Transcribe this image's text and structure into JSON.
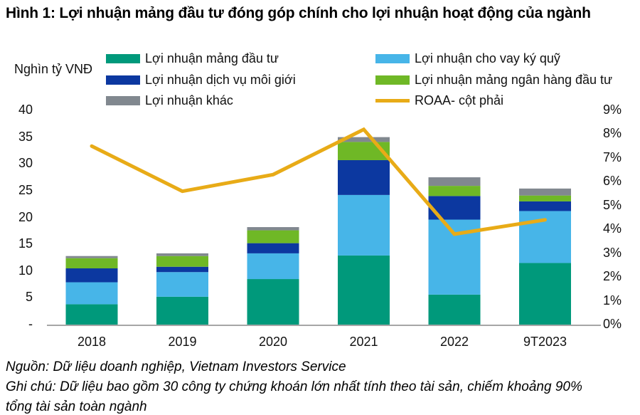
{
  "title": "Hình 1: Lợi nhuận mảng đầu tư đóng góp chính cho lợi nhuận hoạt động của ngành",
  "chart_data": {
    "type": "bar",
    "subtype": "stacked-bar-with-line-combo",
    "categories": [
      "2018",
      "2019",
      "2020",
      "2021",
      "2022",
      "9T2023"
    ],
    "stacked_series": [
      {
        "name": "Lợi nhuận mảng đầu tư",
        "color": "#00997B",
        "values": [
          3.8,
          5.2,
          8.5,
          12.9,
          5.6,
          11.5
        ]
      },
      {
        "name": "Lợi nhuận cho vay ký quỹ",
        "color": "#47B5E8",
        "values": [
          4.1,
          4.6,
          4.8,
          11.3,
          14.0,
          9.7
        ]
      },
      {
        "name": "Lợi nhuận dịch vụ môi giới",
        "color": "#0C38A0",
        "values": [
          2.6,
          1.0,
          1.9,
          6.5,
          4.4,
          1.8
        ]
      },
      {
        "name": "Lợi nhuận mảng ngân hàng đầu tư",
        "color": "#6FB826",
        "values": [
          1.9,
          2.0,
          2.4,
          3.4,
          1.9,
          1.1
        ]
      },
      {
        "name": "Lợi nhuận khác",
        "color": "#81888F",
        "values": [
          0.4,
          0.5,
          0.6,
          0.9,
          1.6,
          1.3
        ]
      }
    ],
    "line_series": {
      "name": "ROAA- cột phải",
      "color": "#E8AB17",
      "values_percent": [
        7.5,
        5.6,
        6.3,
        8.2,
        3.8,
        4.4
      ]
    },
    "left_axis": {
      "title": "Nghìn tỷ VNĐ",
      "min": 0,
      "max": 40,
      "ticks": [
        {
          "label": "40",
          "value": 40
        },
        {
          "label": "35",
          "value": 35
        },
        {
          "label": "30",
          "value": 30
        },
        {
          "label": "25",
          "value": 25
        },
        {
          "label": "20",
          "value": 20
        },
        {
          "label": "15",
          "value": 15
        },
        {
          "label": "10",
          "value": 10
        },
        {
          "label": "5",
          "value": 5
        },
        {
          "label": "-",
          "value": 0
        }
      ]
    },
    "right_axis": {
      "min_percent": 0,
      "max_percent": 9,
      "ticks": [
        {
          "label": "9%",
          "value": 9
        },
        {
          "label": "8%",
          "value": 8
        },
        {
          "label": "7%",
          "value": 7
        },
        {
          "label": "6%",
          "value": 6
        },
        {
          "label": "5%",
          "value": 5
        },
        {
          "label": "4%",
          "value": 4
        },
        {
          "label": "3%",
          "value": 3
        },
        {
          "label": "2%",
          "value": 2
        },
        {
          "label": "1%",
          "value": 1
        },
        {
          "label": "0%",
          "value": 0
        }
      ]
    },
    "grid": "off",
    "legend_position": "top",
    "baseline_color": "#A6A6A6"
  },
  "notes": [
    "Nguồn: Dữ liệu doanh nghiệp, Vietnam Investors Service",
    "Ghi chú: Dữ liệu bao gồm 30 công ty chứng khoán lớn nhất tính theo tài sản, chiếm khoảng 90%",
    "tổng tài sản toàn ngành"
  ]
}
